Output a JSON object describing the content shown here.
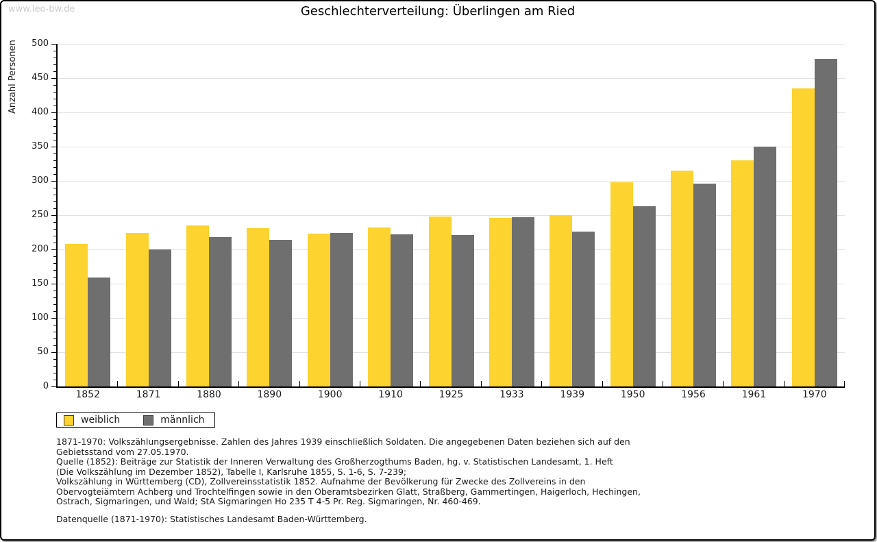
{
  "watermark": "www.leo-bw.de",
  "title": "Geschlechterverteilung: Überlingen am Ried",
  "chart_data": {
    "type": "bar",
    "title": "Geschlechterverteilung: Überlingen am Ried",
    "xlabel": "",
    "ylabel": "Anzahl Personen",
    "ylim": [
      0,
      500
    ],
    "ytick_step": 50,
    "ytick_minor_step": 10,
    "grid": true,
    "legend_position": "bottom-left",
    "categories": [
      "1852",
      "1871",
      "1880",
      "1890",
      "1900",
      "1910",
      "1925",
      "1933",
      "1939",
      "1950",
      "1956",
      "1961",
      "1970"
    ],
    "series": [
      {
        "name": "weiblich",
        "color": "#FCD32F",
        "values": [
          208,
          224,
          235,
          231,
          223,
          232,
          248,
          246,
          250,
          298,
          315,
          330,
          435
        ]
      },
      {
        "name": "männlich",
        "color": "#6F6F6F",
        "values": [
          159,
          200,
          218,
          214,
          224,
          222,
          221,
          247,
          226,
          263,
          296,
          350,
          478
        ]
      }
    ]
  },
  "footnotes": {
    "lines": [
      "1871-1970: Volkszählungsergebnisse. Zahlen des Jahres 1939 einschließlich Soldaten. Die angegebenen Daten beziehen sich auf den",
      "Gebietsstand vom 27.05.1970.",
      "Quelle (1852): Beiträge zur Statistik der Inneren Verwaltung des Großherzogthums Baden, hg. v. Statistischen Landesamt, 1. Heft",
      "(Die Volkszählung im Dezember 1852), Tabelle I, Karlsruhe 1855, S. 1-6, S. 7-239;",
      "Volkszählung in Württemberg (CD), Zollvereinsstatistik 1852. Aufnahme der Bevölkerung für Zwecke des Zollvereins in den",
      "Obervogteiämtern Achberg und Trochtelfingen sowie in den Oberamtsbezirken Glatt, Straßberg, Gammertingen, Haigerloch, Hechingen,",
      "Ostrach, Sigmaringen, und Wald; StA Sigmaringen Ho 235 T 4-5 Pr. Reg. Sigmaringen, Nr. 460-469.",
      "",
      "Datenquelle (1871-1970): Statistisches Landesamt Baden-Württemberg."
    ]
  }
}
